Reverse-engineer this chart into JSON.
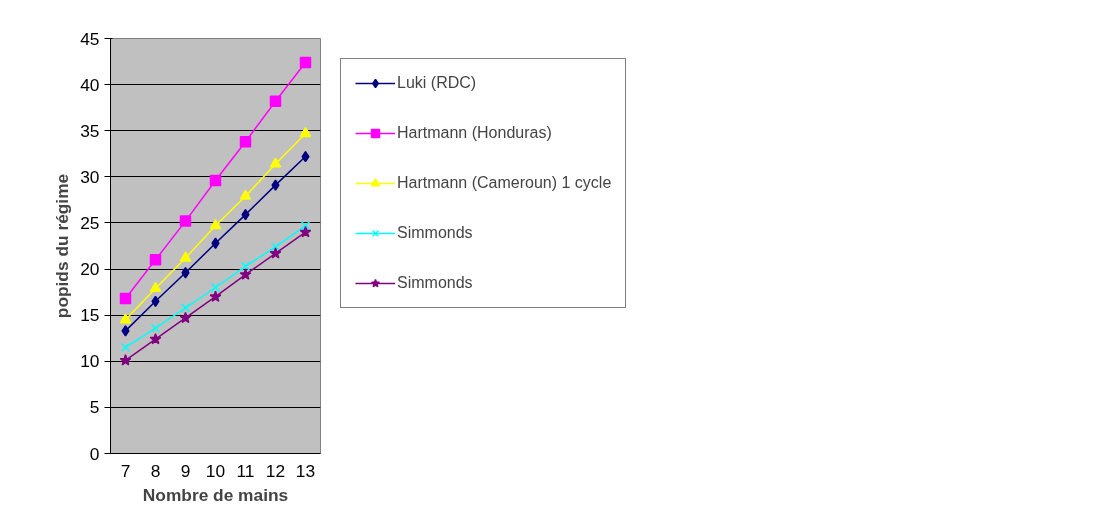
{
  "chart_data": {
    "type": "line",
    "xlabel": "Nombre de mains",
    "ylabel": "popids du régime",
    "categories": [
      "7",
      "8",
      "9",
      "10",
      "11",
      "12",
      "13"
    ],
    "ylim": [
      0,
      45
    ],
    "yticks": [
      0,
      5,
      10,
      15,
      20,
      25,
      30,
      35,
      40,
      45
    ],
    "grid": "y",
    "legend": "right",
    "line_style": "solid",
    "series": [
      {
        "name": "Luki (RDC)",
        "color": "#000080",
        "marker": "diamond",
        "values": [
          13.3,
          16.5,
          19.6,
          22.8,
          25.9,
          29.1,
          32.2
        ]
      },
      {
        "name": "Hartmann (Honduras)",
        "color": "#ff00ff",
        "marker": "square",
        "values": [
          16.8,
          21.0,
          25.2,
          29.6,
          33.8,
          38.2,
          42.4
        ]
      },
      {
        "name": "Hartmann (Cameroun) 1 cycle",
        "color": "#ffff00",
        "marker": "triangle",
        "values": [
          14.5,
          17.9,
          21.2,
          24.7,
          27.9,
          31.4,
          34.7
        ]
      },
      {
        "name": "Simmonds",
        "color": "#00ffff",
        "marker": "cross",
        "values": [
          11.5,
          13.6,
          15.8,
          18.0,
          20.3,
          22.4,
          24.7
        ]
      },
      {
        "name": "Simmonds",
        "color": "#800080",
        "marker": "star",
        "values": [
          10.1,
          12.4,
          14.7,
          17.0,
          19.4,
          21.7,
          24.0
        ]
      }
    ]
  }
}
